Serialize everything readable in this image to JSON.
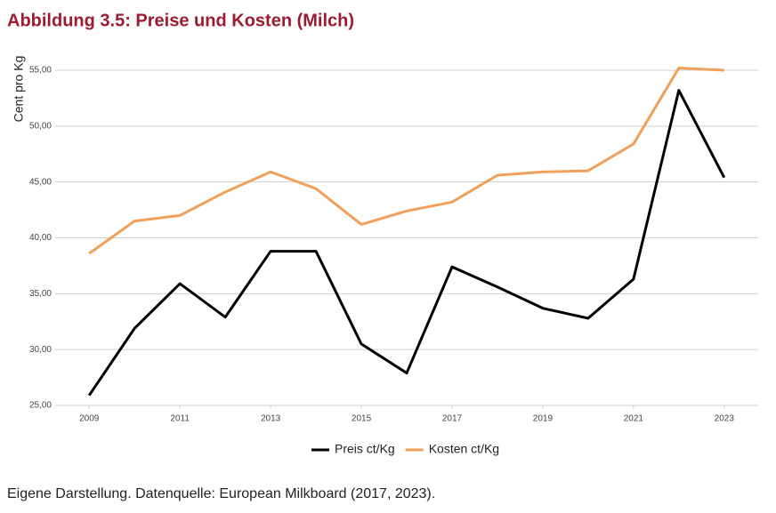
{
  "chart_data": {
    "type": "line",
    "title": "Abbildung 3.5: Preise und Kosten (Milch)",
    "y_label": "Cent pro Kg",
    "source": "Eigene Darstellung. Datenquelle: European Milkboard (2017, 2023).",
    "x": [
      2009,
      2010,
      2011,
      2012,
      2013,
      2014,
      2015,
      2016,
      2017,
      2018,
      2019,
      2020,
      2021,
      2022,
      2023
    ],
    "series": [
      {
        "name": "Preis ct/Kg",
        "color": "#000000",
        "values": [
          25.9,
          31.9,
          35.9,
          32.9,
          38.8,
          38.8,
          30.5,
          27.9,
          37.4,
          35.6,
          33.7,
          32.8,
          36.3,
          53.2,
          45.4
        ]
      },
      {
        "name": "Kosten ct/Kg",
        "color": "#f0a05a",
        "values": [
          38.6,
          41.5,
          42.0,
          44.1,
          45.9,
          44.4,
          41.2,
          42.4,
          43.2,
          45.6,
          45.9,
          46.0,
          48.4,
          55.2,
          55.0
        ]
      }
    ],
    "xlim": [
      2008.25,
      2023.75
    ],
    "xticks": [
      2009,
      2011,
      2013,
      2015,
      2017,
      2019,
      2021,
      2023
    ],
    "ylim": [
      25,
      55
    ],
    "yticks": [
      {
        "value": 25,
        "label": "25,00"
      },
      {
        "value": 30,
        "label": "30,00"
      },
      {
        "value": 35,
        "label": "35,00"
      },
      {
        "value": 40,
        "label": "40,00"
      },
      {
        "value": 45,
        "label": "45,00"
      },
      {
        "value": 50,
        "label": "50,00"
      },
      {
        "value": 55,
        "label": "55,00"
      }
    ],
    "grid": true,
    "legend": "bottom"
  }
}
